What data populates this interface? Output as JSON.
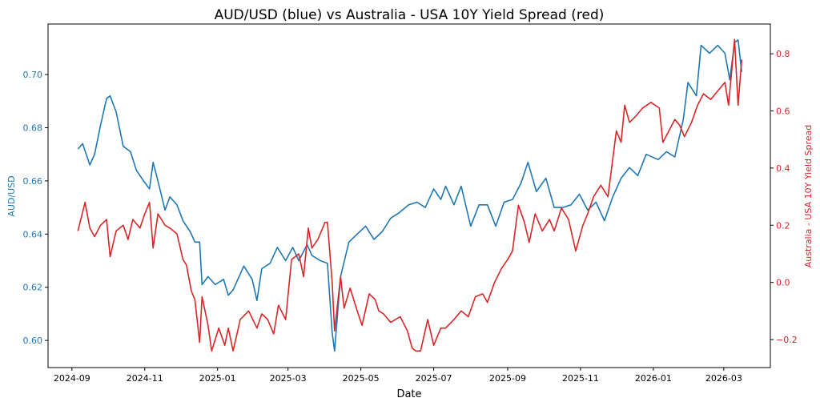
{
  "chart_data": {
    "type": "line",
    "title": "AUD/USD (blue) vs Australia - USA 10Y Yield Spread (red)",
    "xlabel": "Date",
    "ylabel_left": "AUD/USD",
    "ylabel_right": "Australia - USA 10Y Yield Spread",
    "xlim": [
      "2024-08-12",
      "2026-04-09"
    ],
    "ylim_left": [
      0.5898,
      0.719
    ],
    "ylim_right": [
      -0.298,
      0.904
    ],
    "x_ticks": [
      "2024-09",
      "2024-11",
      "2025-01",
      "2025-03",
      "2025-05",
      "2025-07",
      "2025-09",
      "2025-11",
      "2026-01",
      "2026-03"
    ],
    "y_ticks_left": [
      "0.60",
      "0.62",
      "0.64",
      "0.66",
      "0.68",
      "0.70"
    ],
    "y_ticks_right": [
      "−0.2",
      "0.0",
      "0.2",
      "0.4",
      "0.6",
      "0.8"
    ],
    "grid": false,
    "colors": {
      "left": "#1f77b4",
      "right": "#d62728"
    },
    "series": [
      {
        "axis": "left",
        "color": "#1f77b4",
        "points": [
          [
            "2024-09-06",
            0.672
          ],
          [
            "2024-09-10",
            0.674
          ],
          [
            "2024-09-16",
            0.666
          ],
          [
            "2024-09-20",
            0.67
          ],
          [
            "2024-09-25",
            0.681
          ],
          [
            "2024-09-30",
            0.691
          ],
          [
            "2024-10-03",
            0.692
          ],
          [
            "2024-10-08",
            0.686
          ],
          [
            "2024-10-14",
            0.673
          ],
          [
            "2024-10-20",
            0.671
          ],
          [
            "2024-10-25",
            0.664
          ],
          [
            "2024-10-31",
            0.66
          ],
          [
            "2024-11-05",
            0.657
          ],
          [
            "2024-11-08",
            0.667
          ],
          [
            "2024-11-12",
            0.66
          ],
          [
            "2024-11-18",
            0.649
          ],
          [
            "2024-11-22",
            0.654
          ],
          [
            "2024-11-28",
            0.651
          ],
          [
            "2024-12-03",
            0.645
          ],
          [
            "2024-12-09",
            0.641
          ],
          [
            "2024-12-13",
            0.637
          ],
          [
            "2024-12-17",
            0.637
          ],
          [
            "2024-12-19",
            0.621
          ],
          [
            "2024-12-24",
            0.624
          ],
          [
            "2024-12-30",
            0.621
          ],
          [
            "2025-01-06",
            0.623
          ],
          [
            "2025-01-10",
            0.617
          ],
          [
            "2025-01-14",
            0.619
          ],
          [
            "2025-01-17",
            0.622
          ],
          [
            "2025-01-23",
            0.628
          ],
          [
            "2025-01-30",
            0.623
          ],
          [
            "2025-02-03",
            0.615
          ],
          [
            "2025-02-07",
            0.627
          ],
          [
            "2025-02-14",
            0.629
          ],
          [
            "2025-02-20",
            0.635
          ],
          [
            "2025-02-27",
            0.63
          ],
          [
            "2025-03-05",
            0.635
          ],
          [
            "2025-03-10",
            0.63
          ],
          [
            "2025-03-17",
            0.636
          ],
          [
            "2025-03-21",
            0.632
          ],
          [
            "2025-03-28",
            0.63
          ],
          [
            "2025-04-03",
            0.629
          ],
          [
            "2025-04-07",
            0.603
          ],
          [
            "2025-04-09",
            0.596
          ],
          [
            "2025-04-14",
            0.624
          ],
          [
            "2025-04-21",
            0.637
          ],
          [
            "2025-04-28",
            0.64
          ],
          [
            "2025-05-05",
            0.643
          ],
          [
            "2025-05-12",
            0.638
          ],
          [
            "2025-05-19",
            0.641
          ],
          [
            "2025-05-26",
            0.646
          ],
          [
            "2025-06-02",
            0.648
          ],
          [
            "2025-06-10",
            0.651
          ],
          [
            "2025-06-17",
            0.652
          ],
          [
            "2025-06-24",
            0.65
          ],
          [
            "2025-07-01",
            0.657
          ],
          [
            "2025-07-07",
            0.653
          ],
          [
            "2025-07-11",
            0.658
          ],
          [
            "2025-07-18",
            0.651
          ],
          [
            "2025-07-24",
            0.658
          ],
          [
            "2025-08-01",
            0.643
          ],
          [
            "2025-08-08",
            0.651
          ],
          [
            "2025-08-15",
            0.651
          ],
          [
            "2025-08-22",
            0.643
          ],
          [
            "2025-08-29",
            0.652
          ],
          [
            "2025-09-05",
            0.653
          ],
          [
            "2025-09-12",
            0.659
          ],
          [
            "2025-09-18",
            0.667
          ],
          [
            "2025-09-25",
            0.656
          ],
          [
            "2025-10-03",
            0.661
          ],
          [
            "2025-10-10",
            0.65
          ],
          [
            "2025-10-17",
            0.65
          ],
          [
            "2025-10-24",
            0.651
          ],
          [
            "2025-10-31",
            0.655
          ],
          [
            "2025-11-07",
            0.649
          ],
          [
            "2025-11-14",
            0.652
          ],
          [
            "2025-11-21",
            0.645
          ],
          [
            "2025-11-28",
            0.654
          ],
          [
            "2025-12-05",
            0.661
          ],
          [
            "2025-12-12",
            0.665
          ],
          [
            "2025-12-19",
            0.662
          ],
          [
            "2025-12-26",
            0.67
          ],
          [
            "2026-01-05",
            0.668
          ],
          [
            "2026-01-12",
            0.671
          ],
          [
            "2026-01-19",
            0.669
          ],
          [
            "2026-01-26",
            0.683
          ],
          [
            "2026-01-30",
            0.697
          ],
          [
            "2026-02-06",
            0.692
          ],
          [
            "2026-02-10",
            0.711
          ],
          [
            "2026-02-17",
            0.708
          ],
          [
            "2026-02-24",
            0.711
          ],
          [
            "2026-03-02",
            0.708
          ],
          [
            "2026-03-06",
            0.698
          ],
          [
            "2026-03-10",
            0.712
          ],
          [
            "2026-03-13",
            0.713
          ],
          [
            "2026-03-16",
            0.701
          ]
        ]
      },
      {
        "axis": "right",
        "color": "#d62728",
        "points": [
          [
            "2024-09-06",
            0.18
          ],
          [
            "2024-09-12",
            0.28
          ],
          [
            "2024-09-16",
            0.19
          ],
          [
            "2024-09-20",
            0.16
          ],
          [
            "2024-09-25",
            0.2
          ],
          [
            "2024-09-30",
            0.22
          ],
          [
            "2024-10-03",
            0.09
          ],
          [
            "2024-10-08",
            0.18
          ],
          [
            "2024-10-14",
            0.2
          ],
          [
            "2024-10-18",
            0.15
          ],
          [
            "2024-10-22",
            0.22
          ],
          [
            "2024-10-28",
            0.19
          ],
          [
            "2024-11-01",
            0.24
          ],
          [
            "2024-11-05",
            0.28
          ],
          [
            "2024-11-08",
            0.12
          ],
          [
            "2024-11-12",
            0.24
          ],
          [
            "2024-11-18",
            0.2
          ],
          [
            "2024-11-22",
            0.19
          ],
          [
            "2024-11-28",
            0.17
          ],
          [
            "2024-12-03",
            0.08
          ],
          [
            "2024-12-06",
            0.06
          ],
          [
            "2024-12-10",
            -0.03
          ],
          [
            "2024-12-13",
            -0.06
          ],
          [
            "2024-12-17",
            -0.21
          ],
          [
            "2024-12-19",
            -0.05
          ],
          [
            "2024-12-24",
            -0.15
          ],
          [
            "2024-12-27",
            -0.24
          ],
          [
            "2025-01-02",
            -0.16
          ],
          [
            "2025-01-07",
            -0.22
          ],
          [
            "2025-01-10",
            -0.16
          ],
          [
            "2025-01-14",
            -0.24
          ],
          [
            "2025-01-20",
            -0.13
          ],
          [
            "2025-01-27",
            -0.1
          ],
          [
            "2025-02-03",
            -0.16
          ],
          [
            "2025-02-07",
            -0.11
          ],
          [
            "2025-02-12",
            -0.13
          ],
          [
            "2025-02-17",
            -0.18
          ],
          [
            "2025-02-21",
            -0.08
          ],
          [
            "2025-02-27",
            -0.13
          ],
          [
            "2025-03-04",
            0.08
          ],
          [
            "2025-03-10",
            0.1
          ],
          [
            "2025-03-14",
            0.02
          ],
          [
            "2025-03-18",
            0.19
          ],
          [
            "2025-03-21",
            0.12
          ],
          [
            "2025-03-26",
            0.15
          ],
          [
            "2025-04-01",
            0.21
          ],
          [
            "2025-04-03",
            0.21
          ],
          [
            "2025-04-07",
            0.0
          ],
          [
            "2025-04-09",
            -0.17
          ],
          [
            "2025-04-14",
            0.02
          ],
          [
            "2025-04-17",
            -0.09
          ],
          [
            "2025-04-22",
            -0.02
          ],
          [
            "2025-04-28",
            -0.1
          ],
          [
            "2025-05-02",
            -0.15
          ],
          [
            "2025-05-08",
            -0.04
          ],
          [
            "2025-05-13",
            -0.06
          ],
          [
            "2025-05-16",
            -0.1
          ],
          [
            "2025-05-20",
            -0.11
          ],
          [
            "2025-05-26",
            -0.14
          ],
          [
            "2025-06-03",
            -0.12
          ],
          [
            "2025-06-09",
            -0.17
          ],
          [
            "2025-06-13",
            -0.23
          ],
          [
            "2025-06-16",
            -0.24
          ],
          [
            "2025-06-20",
            -0.24
          ],
          [
            "2025-06-26",
            -0.13
          ],
          [
            "2025-07-01",
            -0.22
          ],
          [
            "2025-07-07",
            -0.16
          ],
          [
            "2025-07-11",
            -0.16
          ],
          [
            "2025-07-18",
            -0.13
          ],
          [
            "2025-07-24",
            -0.1
          ],
          [
            "2025-07-30",
            -0.12
          ],
          [
            "2025-08-05",
            -0.05
          ],
          [
            "2025-08-11",
            -0.04
          ],
          [
            "2025-08-15",
            -0.07
          ],
          [
            "2025-08-21",
            0.0
          ],
          [
            "2025-08-27",
            0.05
          ],
          [
            "2025-09-01",
            0.08
          ],
          [
            "2025-09-05",
            0.11
          ],
          [
            "2025-09-10",
            0.27
          ],
          [
            "2025-09-15",
            0.21
          ],
          [
            "2025-09-19",
            0.14
          ],
          [
            "2025-09-24",
            0.24
          ],
          [
            "2025-09-30",
            0.18
          ],
          [
            "2025-10-06",
            0.22
          ],
          [
            "2025-10-10",
            0.18
          ],
          [
            "2025-10-16",
            0.26
          ],
          [
            "2025-10-22",
            0.22
          ],
          [
            "2025-10-28",
            0.11
          ],
          [
            "2025-11-03",
            0.2
          ],
          [
            "2025-11-07",
            0.24
          ],
          [
            "2025-11-12",
            0.3
          ],
          [
            "2025-11-18",
            0.34
          ],
          [
            "2025-11-24",
            0.3
          ],
          [
            "2025-12-01",
            0.53
          ],
          [
            "2025-12-05",
            0.49
          ],
          [
            "2025-12-08",
            0.62
          ],
          [
            "2025-12-12",
            0.56
          ],
          [
            "2025-12-17",
            0.58
          ],
          [
            "2025-12-23",
            0.61
          ],
          [
            "2025-12-30",
            0.63
          ],
          [
            "2026-01-06",
            0.61
          ],
          [
            "2026-01-09",
            0.49
          ],
          [
            "2026-01-14",
            0.53
          ],
          [
            "2026-01-19",
            0.57
          ],
          [
            "2026-01-23",
            0.55
          ],
          [
            "2026-01-27",
            0.51
          ],
          [
            "2026-02-02",
            0.56
          ],
          [
            "2026-02-07",
            0.62
          ],
          [
            "2026-02-12",
            0.66
          ],
          [
            "2026-02-18",
            0.64
          ],
          [
            "2026-02-24",
            0.67
          ],
          [
            "2026-03-02",
            0.7
          ],
          [
            "2026-03-05",
            0.62
          ],
          [
            "2026-03-10",
            0.85
          ],
          [
            "2026-03-13",
            0.62
          ],
          [
            "2026-03-16",
            0.78
          ]
        ]
      }
    ]
  }
}
